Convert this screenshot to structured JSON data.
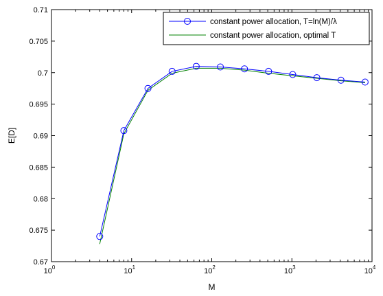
{
  "chart_data": {
    "type": "line",
    "title": "",
    "xlabel": "M",
    "ylabel": "E[D]",
    "x_scale": "log",
    "xlim": [
      1,
      10000
    ],
    "ylim": [
      0.67,
      0.71
    ],
    "grid": false,
    "legend_position": "top-right",
    "x_ticks": [
      {
        "value": 1,
        "base": "10",
        "exp": "0"
      },
      {
        "value": 10,
        "base": "10",
        "exp": "1"
      },
      {
        "value": 100,
        "base": "10",
        "exp": "2"
      },
      {
        "value": 1000,
        "base": "10",
        "exp": "3"
      },
      {
        "value": 10000,
        "base": "10",
        "exp": "4"
      }
    ],
    "y_ticks": [
      {
        "value": 0.67,
        "label": "0.67"
      },
      {
        "value": 0.675,
        "label": "0.675"
      },
      {
        "value": 0.68,
        "label": "0.68"
      },
      {
        "value": 0.685,
        "label": "0.685"
      },
      {
        "value": 0.69,
        "label": "0.69"
      },
      {
        "value": 0.695,
        "label": "0.695"
      },
      {
        "value": 0.7,
        "label": "0.7"
      },
      {
        "value": 0.705,
        "label": "0.705"
      },
      {
        "value": 0.71,
        "label": "0.71"
      }
    ],
    "series": [
      {
        "name": "constant power allocation, T=ln(M)/λ",
        "color": "#0000ff",
        "marker": "circle",
        "x": [
          4,
          8,
          16,
          32,
          64,
          128,
          256,
          512,
          1024,
          2048,
          4096,
          8192
        ],
        "y": [
          0.674,
          0.6908,
          0.6975,
          0.7002,
          0.701,
          0.7009,
          0.7006,
          0.7002,
          0.6997,
          0.6992,
          0.6988,
          0.6985
        ]
      },
      {
        "name": "constant power allocation, optimal T",
        "color": "#008000",
        "marker": "none",
        "x": [
          4,
          8,
          16,
          32,
          64,
          128,
          256,
          512,
          1024,
          2048,
          4096,
          8192
        ],
        "y": [
          0.6728,
          0.6903,
          0.6972,
          0.6999,
          0.7007,
          0.7007,
          0.7004,
          0.6999,
          0.6995,
          0.6991,
          0.6987,
          0.6984
        ]
      }
    ]
  }
}
